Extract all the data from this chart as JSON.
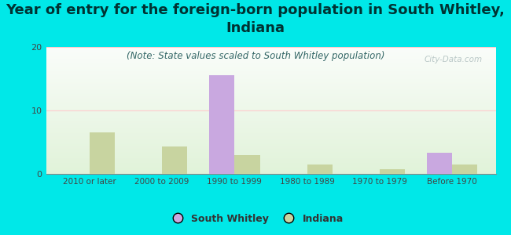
{
  "title": "Year of entry for the foreign-born population in South Whitley,\nIndiana",
  "subtitle": "(Note: State values scaled to South Whitley population)",
  "categories": [
    "2010 or later",
    "2000 to 2009",
    "1990 to 1999",
    "1980 to 1989",
    "1970 to 1979",
    "Before 1970"
  ],
  "south_whitley": [
    0,
    0,
    15.5,
    0,
    0,
    3.3
  ],
  "indiana": [
    6.5,
    4.3,
    3.0,
    1.5,
    0.8,
    1.5
  ],
  "sw_color": "#c9a8e0",
  "in_color": "#c8d4a0",
  "ylim": [
    0,
    20
  ],
  "yticks": [
    0,
    10,
    20
  ],
  "background_color": "#00e8e8",
  "bar_width": 0.35,
  "title_fontsize": 13,
  "subtitle_fontsize": 8.5,
  "title_color": "#003333",
  "subtitle_color": "#336666",
  "watermark": "City-Data.com"
}
